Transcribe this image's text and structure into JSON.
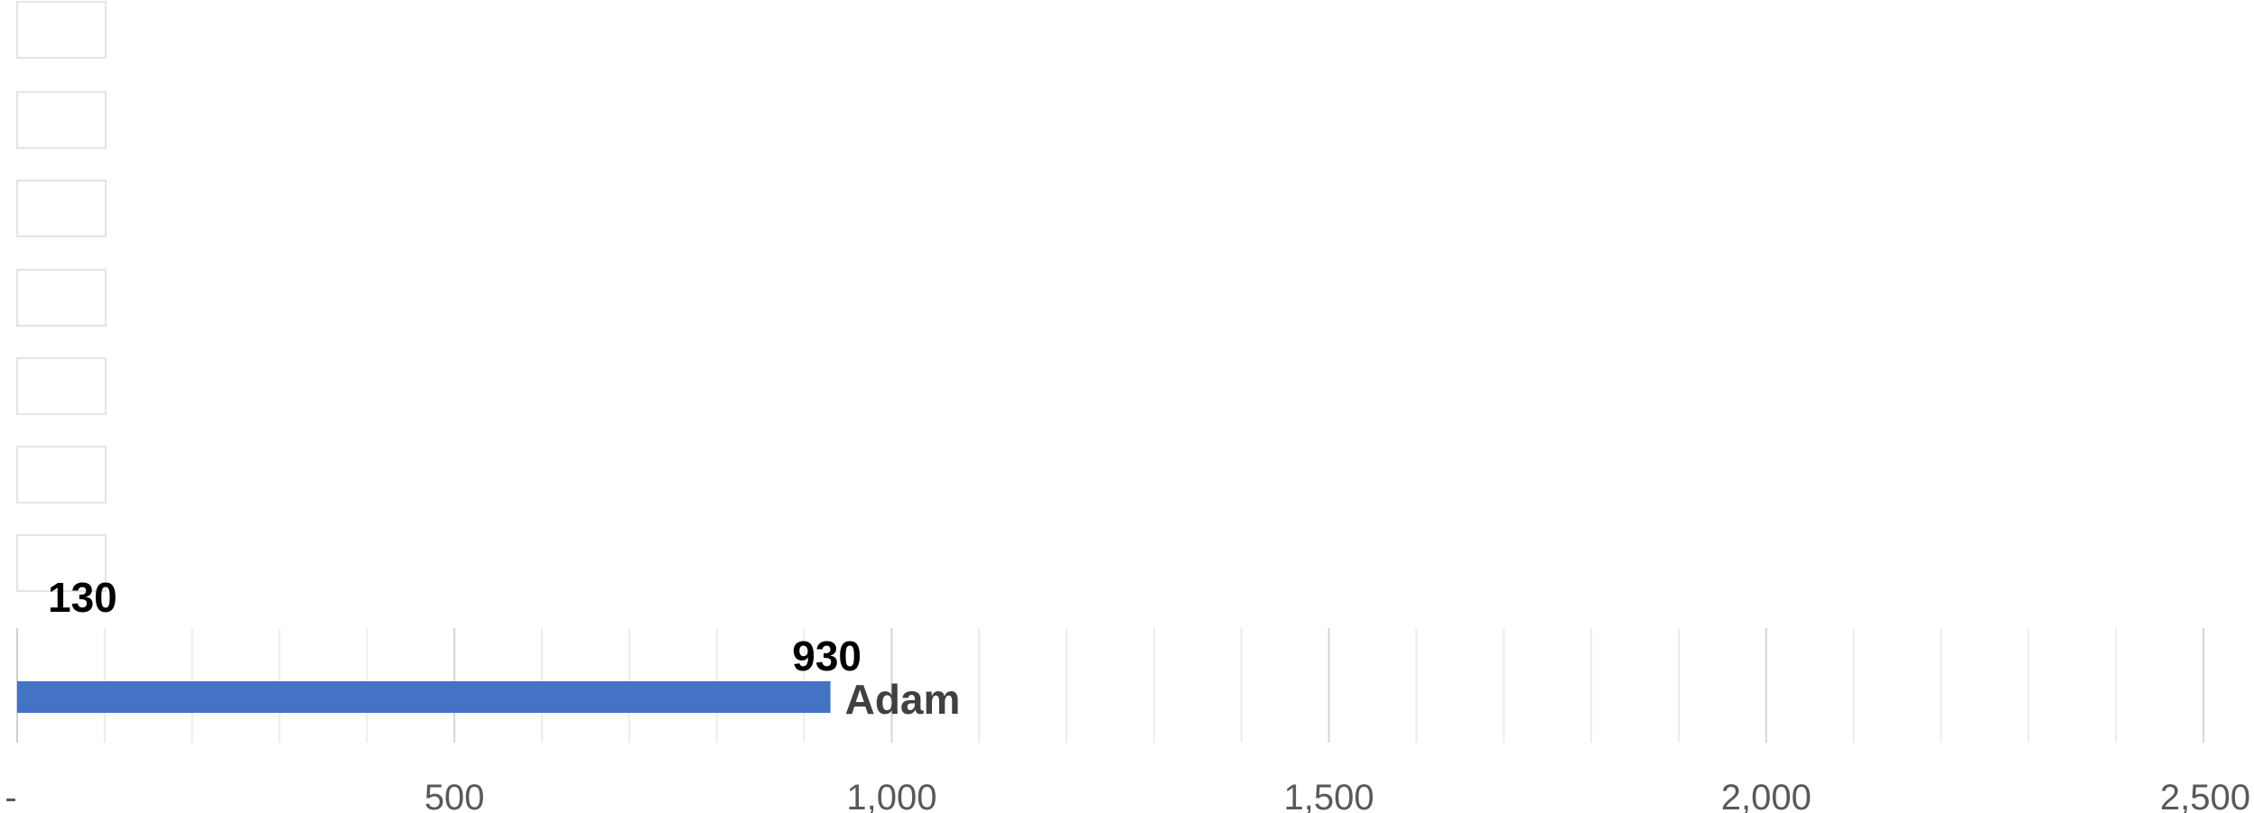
{
  "chart_data": {
    "type": "bar",
    "orientation": "horizontal",
    "title": "",
    "xlabel": "",
    "ylabel": "",
    "xlim": [
      0,
      2500
    ],
    "x_ticks": [
      0,
      500,
      1000,
      1500,
      2000,
      2500
    ],
    "x_tick_labels": [
      "-",
      "500",
      "1,000",
      "1,500",
      "2,000",
      "2,500"
    ],
    "grid": true,
    "series": [
      {
        "label": "Adam",
        "value": 930,
        "value_label": "930",
        "color": "#4472C4"
      }
    ],
    "annotations": [
      {
        "text": "130",
        "value": 130
      }
    ]
  }
}
